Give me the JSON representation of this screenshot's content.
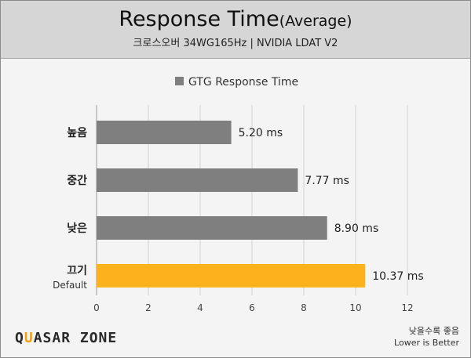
{
  "header": {
    "title": "Response Time",
    "title_suffix": "(Average)",
    "subtitle": "크로스오버 34WG165Hz  |  NVIDIA LDAT V2"
  },
  "footer": {
    "logo_part1": "Q",
    "logo_accent": "U",
    "logo_part2": "ASAR ZONE",
    "note_ko": "낮을수록 좋음",
    "note_en": "Lower is Better"
  },
  "colors": {
    "gray_bar": "#7f7f7f",
    "highlight_bar": "#fbb21d"
  },
  "chart_data": {
    "type": "bar",
    "orientation": "horizontal",
    "legend": "GTG Response Time",
    "legend_position": "top-center",
    "grid": true,
    "categories": [
      "높음",
      "중간",
      "낮은",
      "끄기"
    ],
    "category_sublabels": [
      "",
      "",
      "",
      "Default"
    ],
    "values": [
      5.2,
      7.77,
      8.9,
      10.37
    ],
    "value_labels": [
      "5.20 ms",
      "7.77 ms",
      "8.90 ms",
      "10.37 ms"
    ],
    "highlight_index": 3,
    "xlim": [
      0,
      12
    ],
    "xticks": [
      "0",
      "2",
      "4",
      "6",
      "8",
      "10",
      "12"
    ]
  }
}
